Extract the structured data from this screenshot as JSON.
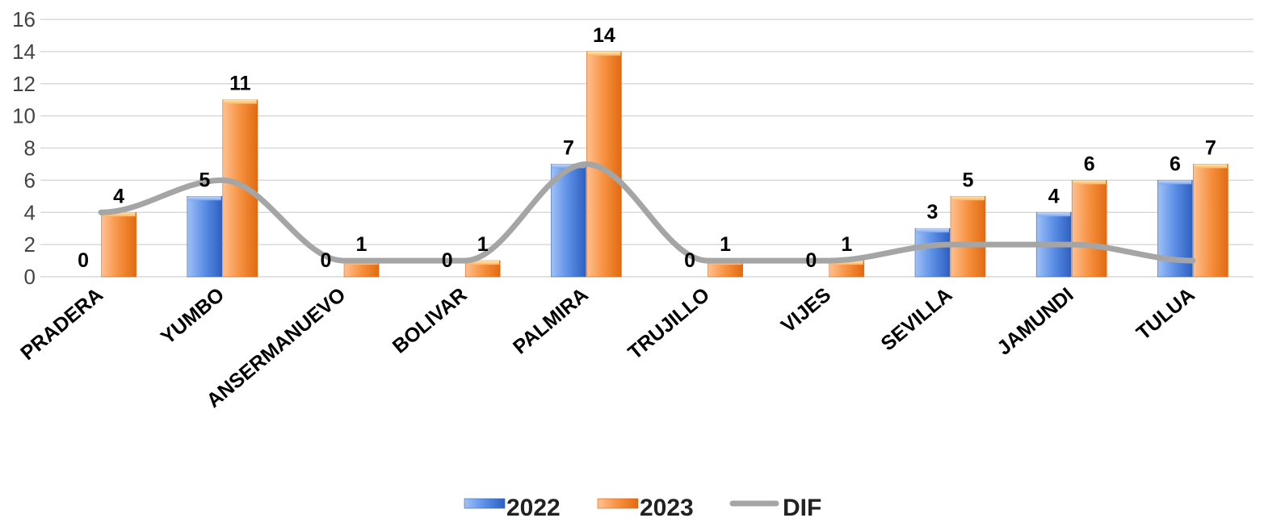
{
  "chart_data": {
    "type": "bar",
    "categories": [
      "PRADERA",
      "YUMBO",
      "ANSERMANUEVO",
      "BOLIVAR",
      "PALMIRA",
      "TRUJILLO",
      "VIJES",
      "SEVILLA",
      "JAMUNDI",
      "TULUA"
    ],
    "series": [
      {
        "name": "2022",
        "kind": "bar",
        "values": [
          0,
          5,
          0,
          0,
          7,
          0,
          0,
          3,
          4,
          6
        ],
        "color": "#4472C4"
      },
      {
        "name": "2023",
        "kind": "bar",
        "values": [
          4,
          11,
          1,
          1,
          14,
          1,
          1,
          5,
          6,
          7
        ],
        "color": "#ED7D31"
      },
      {
        "name": "DIF",
        "kind": "line",
        "values": [
          4,
          6,
          1,
          1,
          7,
          1,
          1,
          2,
          2,
          1
        ],
        "color": "#A5A5A5"
      }
    ],
    "ylim": [
      0,
      16
    ],
    "yticks": [
      0,
      2,
      4,
      6,
      8,
      10,
      12,
      14,
      16
    ],
    "grid": true,
    "legend": "bottom",
    "title": "",
    "xlabel": "",
    "ylabel": ""
  }
}
